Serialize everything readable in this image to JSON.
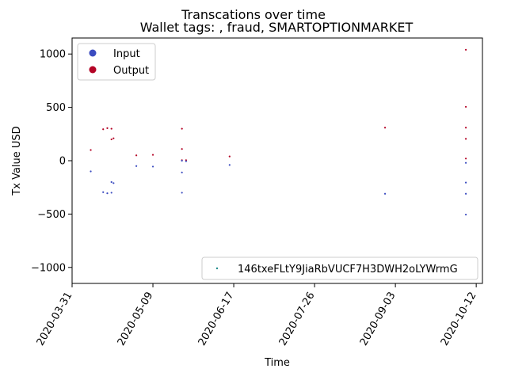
{
  "chart_data": {
    "type": "scatter",
    "title": "Transcations over time",
    "subtitle": "Wallet tags: , fraud, SMARTOPTIONMARKET",
    "xlabel": "Time",
    "ylabel": "Tx Value USD",
    "xlim": [
      "2020-03-31",
      "2020-10-15"
    ],
    "ylim": [
      -1150,
      1150
    ],
    "x_ticks": [
      "2020-03-31",
      "2020-05-09",
      "2020-06-17",
      "2020-07-26",
      "2020-09-03",
      "2020-10-12"
    ],
    "y_ticks": [
      1000,
      500,
      0,
      -500,
      -1000
    ],
    "grid": false,
    "legends": [
      {
        "placement": "upper-left",
        "entries": [
          {
            "label": "Input",
            "color": "#3b4cc0"
          },
          {
            "label": "Output",
            "color": "#b40426"
          }
        ]
      },
      {
        "placement": "lower-right",
        "entries": [
          {
            "label": "146txeFLtY9JiaRbVUCF7H3DWH2oLYWrmG",
            "color": "#1f8a8a"
          }
        ]
      }
    ],
    "series": [
      {
        "name": "Output",
        "color": "#b40426",
        "points": [
          {
            "x": "2020-04-09",
            "y": 100
          },
          {
            "x": "2020-04-15",
            "y": 295
          },
          {
            "x": "2020-04-17",
            "y": 305
          },
          {
            "x": "2020-04-19",
            "y": 200
          },
          {
            "x": "2020-04-19",
            "y": 300
          },
          {
            "x": "2020-04-20",
            "y": 210
          },
          {
            "x": "2020-05-01",
            "y": 50
          },
          {
            "x": "2020-05-09",
            "y": 55
          },
          {
            "x": "2020-05-23",
            "y": 300
          },
          {
            "x": "2020-05-23",
            "y": 110
          },
          {
            "x": "2020-05-23",
            "y": 5
          },
          {
            "x": "2020-05-25",
            "y": 5
          },
          {
            "x": "2020-06-15",
            "y": 40
          },
          {
            "x": "2020-08-29",
            "y": 310
          },
          {
            "x": "2020-10-07",
            "y": 1040
          },
          {
            "x": "2020-10-07",
            "y": 505
          },
          {
            "x": "2020-10-07",
            "y": 310
          },
          {
            "x": "2020-10-07",
            "y": 205
          },
          {
            "x": "2020-10-07",
            "y": 20
          }
        ]
      },
      {
        "name": "Input",
        "color": "#3b4cc0",
        "points": [
          {
            "x": "2020-04-09",
            "y": -100
          },
          {
            "x": "2020-04-15",
            "y": -295
          },
          {
            "x": "2020-04-17",
            "y": -305
          },
          {
            "x": "2020-04-19",
            "y": -200
          },
          {
            "x": "2020-04-19",
            "y": -300
          },
          {
            "x": "2020-04-20",
            "y": -210
          },
          {
            "x": "2020-05-01",
            "y": -50
          },
          {
            "x": "2020-05-09",
            "y": -55
          },
          {
            "x": "2020-05-23",
            "y": -300
          },
          {
            "x": "2020-05-23",
            "y": -110
          },
          {
            "x": "2020-05-23",
            "y": 0
          },
          {
            "x": "2020-05-25",
            "y": -5
          },
          {
            "x": "2020-06-15",
            "y": -40
          },
          {
            "x": "2020-08-29",
            "y": -310
          },
          {
            "x": "2020-10-07",
            "y": -505
          },
          {
            "x": "2020-10-07",
            "y": -310
          },
          {
            "x": "2020-10-07",
            "y": -205
          },
          {
            "x": "2020-10-07",
            "y": -20
          }
        ]
      }
    ]
  }
}
